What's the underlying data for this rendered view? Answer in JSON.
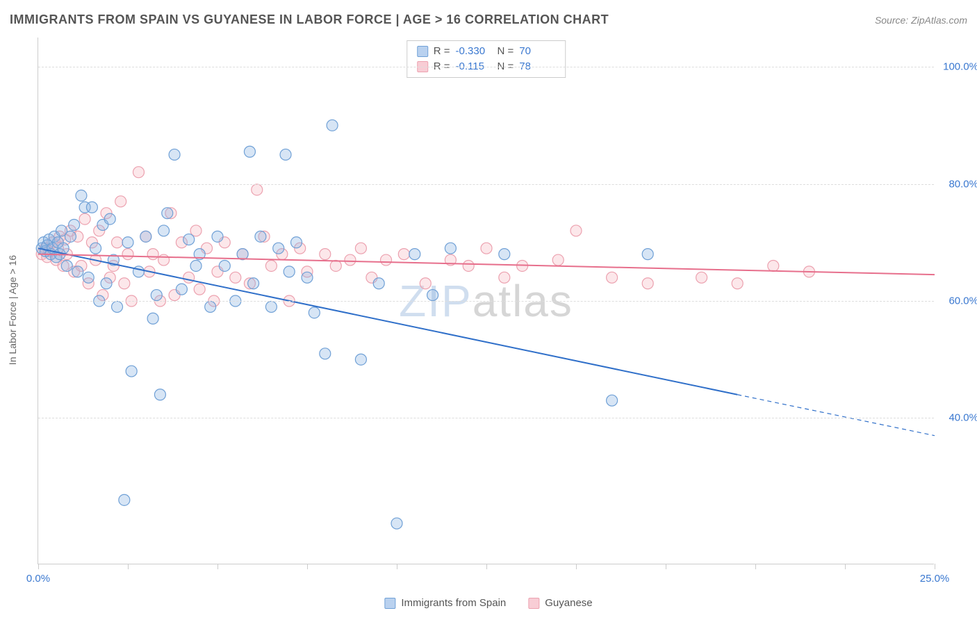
{
  "header": {
    "title": "IMMIGRANTS FROM SPAIN VS GUYANESE IN LABOR FORCE | AGE > 16 CORRELATION CHART",
    "source": "Source: ZipAtlas.com"
  },
  "watermark": {
    "part1": "ZIP",
    "part2": "atlas"
  },
  "chart": {
    "type": "scatter",
    "background_color": "#ffffff",
    "grid_color": "#dddddd",
    "axis_color": "#cccccc",
    "xlim": [
      0,
      25
    ],
    "ylim": [
      15,
      105
    ],
    "x_ticks": [
      0,
      2.5,
      5,
      7.5,
      10,
      12.5,
      15,
      17.5,
      20,
      22.5,
      25
    ],
    "x_tick_labels_shown": {
      "0": "0.0%",
      "25": "25.0%"
    },
    "x_label_color": "#3a78d0",
    "y_gridlines": [
      40,
      60,
      80,
      100
    ],
    "y_tick_labels": {
      "40": "40.0%",
      "60": "60.0%",
      "80": "80.0%",
      "100": "100.0%"
    },
    "y_label_color": "#3a78d0",
    "y_axis_title": "In Labor Force | Age > 16",
    "y_axis_title_color": "#666666",
    "marker_radius": 8,
    "marker_stroke_width": 1.2,
    "marker_fill_opacity": 0.35,
    "line_width": 2,
    "series": [
      {
        "id": "spain",
        "label": "Immigrants from Spain",
        "color": "#8db4e2",
        "stroke": "#6fa0d6",
        "line_color": "#2f6fc9",
        "R": "-0.330",
        "N": "70",
        "regression": {
          "x1": 0,
          "y1": 69.0,
          "x2": 19.5,
          "y2": 44.0,
          "dash_from_x": 19.5,
          "dash_to_x": 25,
          "dash_to_y": 37.0
        },
        "points": [
          [
            0.1,
            69
          ],
          [
            0.15,
            70
          ],
          [
            0.2,
            68.5
          ],
          [
            0.25,
            69.5
          ],
          [
            0.3,
            70.5
          ],
          [
            0.35,
            68
          ],
          [
            0.4,
            69
          ],
          [
            0.45,
            71
          ],
          [
            0.5,
            67.5
          ],
          [
            0.55,
            70
          ],
          [
            0.6,
            68
          ],
          [
            0.65,
            72
          ],
          [
            0.7,
            69
          ],
          [
            0.8,
            66
          ],
          [
            0.9,
            71
          ],
          [
            1.0,
            73
          ],
          [
            1.1,
            65
          ],
          [
            1.2,
            78
          ],
          [
            1.3,
            76
          ],
          [
            1.4,
            64
          ],
          [
            1.5,
            76
          ],
          [
            1.6,
            69
          ],
          [
            1.7,
            60
          ],
          [
            1.8,
            73
          ],
          [
            1.9,
            63
          ],
          [
            2.0,
            74
          ],
          [
            2.1,
            67
          ],
          [
            2.2,
            59
          ],
          [
            2.4,
            26
          ],
          [
            2.5,
            70
          ],
          [
            2.6,
            48
          ],
          [
            2.8,
            65
          ],
          [
            3.0,
            71
          ],
          [
            3.2,
            57
          ],
          [
            3.3,
            61
          ],
          [
            3.4,
            44
          ],
          [
            3.5,
            72
          ],
          [
            3.6,
            75
          ],
          [
            3.8,
            85
          ],
          [
            4.0,
            62
          ],
          [
            4.2,
            70.5
          ],
          [
            4.4,
            66
          ],
          [
            4.5,
            68
          ],
          [
            4.8,
            59
          ],
          [
            5.0,
            71
          ],
          [
            5.2,
            66
          ],
          [
            5.5,
            60
          ],
          [
            5.7,
            68
          ],
          [
            5.9,
            85.5
          ],
          [
            6.0,
            63
          ],
          [
            6.2,
            71
          ],
          [
            6.5,
            59
          ],
          [
            6.7,
            69
          ],
          [
            6.9,
            85
          ],
          [
            7.0,
            65
          ],
          [
            7.2,
            70
          ],
          [
            7.5,
            64
          ],
          [
            7.7,
            58
          ],
          [
            8.0,
            51
          ],
          [
            8.2,
            90
          ],
          [
            9.0,
            50
          ],
          [
            9.5,
            63
          ],
          [
            10.0,
            22
          ],
          [
            10.5,
            68
          ],
          [
            11.0,
            61
          ],
          [
            11.5,
            69
          ],
          [
            13.0,
            68
          ],
          [
            16.0,
            43
          ],
          [
            17.0,
            68
          ]
        ]
      },
      {
        "id": "guyanese",
        "label": "Guyanese",
        "color": "#f6b9c4",
        "stroke": "#eca1af",
        "line_color": "#e76f8c",
        "R": "-0.115",
        "N": "78",
        "regression": {
          "x1": 0,
          "y1": 68.0,
          "x2": 25,
          "y2": 64.5
        },
        "points": [
          [
            0.1,
            68
          ],
          [
            0.2,
            69
          ],
          [
            0.25,
            67.5
          ],
          [
            0.3,
            68.5
          ],
          [
            0.4,
            70
          ],
          [
            0.5,
            67
          ],
          [
            0.55,
            69
          ],
          [
            0.6,
            71
          ],
          [
            0.7,
            66
          ],
          [
            0.75,
            70.5
          ],
          [
            0.8,
            68
          ],
          [
            0.9,
            72
          ],
          [
            1.0,
            65
          ],
          [
            1.1,
            71
          ],
          [
            1.2,
            66
          ],
          [
            1.3,
            74
          ],
          [
            1.4,
            63
          ],
          [
            1.5,
            70
          ],
          [
            1.6,
            67
          ],
          [
            1.7,
            72
          ],
          [
            1.8,
            61
          ],
          [
            1.9,
            75
          ],
          [
            2.0,
            64
          ],
          [
            2.1,
            66
          ],
          [
            2.2,
            70
          ],
          [
            2.3,
            77
          ],
          [
            2.4,
            63
          ],
          [
            2.5,
            68
          ],
          [
            2.6,
            60
          ],
          [
            2.8,
            82
          ],
          [
            3.0,
            71
          ],
          [
            3.1,
            65
          ],
          [
            3.2,
            68
          ],
          [
            3.4,
            60
          ],
          [
            3.5,
            67
          ],
          [
            3.7,
            75
          ],
          [
            3.8,
            61
          ],
          [
            4.0,
            70
          ],
          [
            4.2,
            64
          ],
          [
            4.4,
            72
          ],
          [
            4.5,
            62
          ],
          [
            4.7,
            69
          ],
          [
            4.9,
            60
          ],
          [
            5.0,
            65
          ],
          [
            5.2,
            70
          ],
          [
            5.5,
            64
          ],
          [
            5.7,
            68
          ],
          [
            5.9,
            63
          ],
          [
            6.1,
            79
          ],
          [
            6.3,
            71
          ],
          [
            6.5,
            66
          ],
          [
            6.8,
            68
          ],
          [
            7.0,
            60
          ],
          [
            7.3,
            69
          ],
          [
            7.5,
            65
          ],
          [
            8.0,
            68
          ],
          [
            8.3,
            66
          ],
          [
            8.7,
            67
          ],
          [
            9.0,
            69
          ],
          [
            9.3,
            64
          ],
          [
            9.7,
            67
          ],
          [
            10.2,
            68
          ],
          [
            10.8,
            63
          ],
          [
            11.5,
            67
          ],
          [
            12.0,
            66
          ],
          [
            12.5,
            69
          ],
          [
            13.0,
            64
          ],
          [
            13.5,
            66
          ],
          [
            14.5,
            67
          ],
          [
            15.0,
            72
          ],
          [
            16.0,
            64
          ],
          [
            17.0,
            63
          ],
          [
            18.5,
            64
          ],
          [
            19.5,
            63
          ],
          [
            20.5,
            66
          ],
          [
            21.5,
            65
          ]
        ]
      }
    ]
  },
  "legend_bottom": {
    "items": [
      {
        "label": "Immigrants from Spain",
        "swatch_fill": "#b9d1ef",
        "swatch_border": "#6fa0d6"
      },
      {
        "label": "Guyanese",
        "swatch_fill": "#f8cdd5",
        "swatch_border": "#eca1af"
      }
    ]
  },
  "stats_legend": {
    "r_label": "R =",
    "n_label": "N =",
    "rows": [
      {
        "swatch_fill": "#b9d1ef",
        "swatch_border": "#6fa0d6",
        "r": "-0.330",
        "n": "70"
      },
      {
        "swatch_fill": "#f8cdd5",
        "swatch_border": "#eca1af",
        "r": "-0.115",
        "n": "78"
      }
    ]
  }
}
